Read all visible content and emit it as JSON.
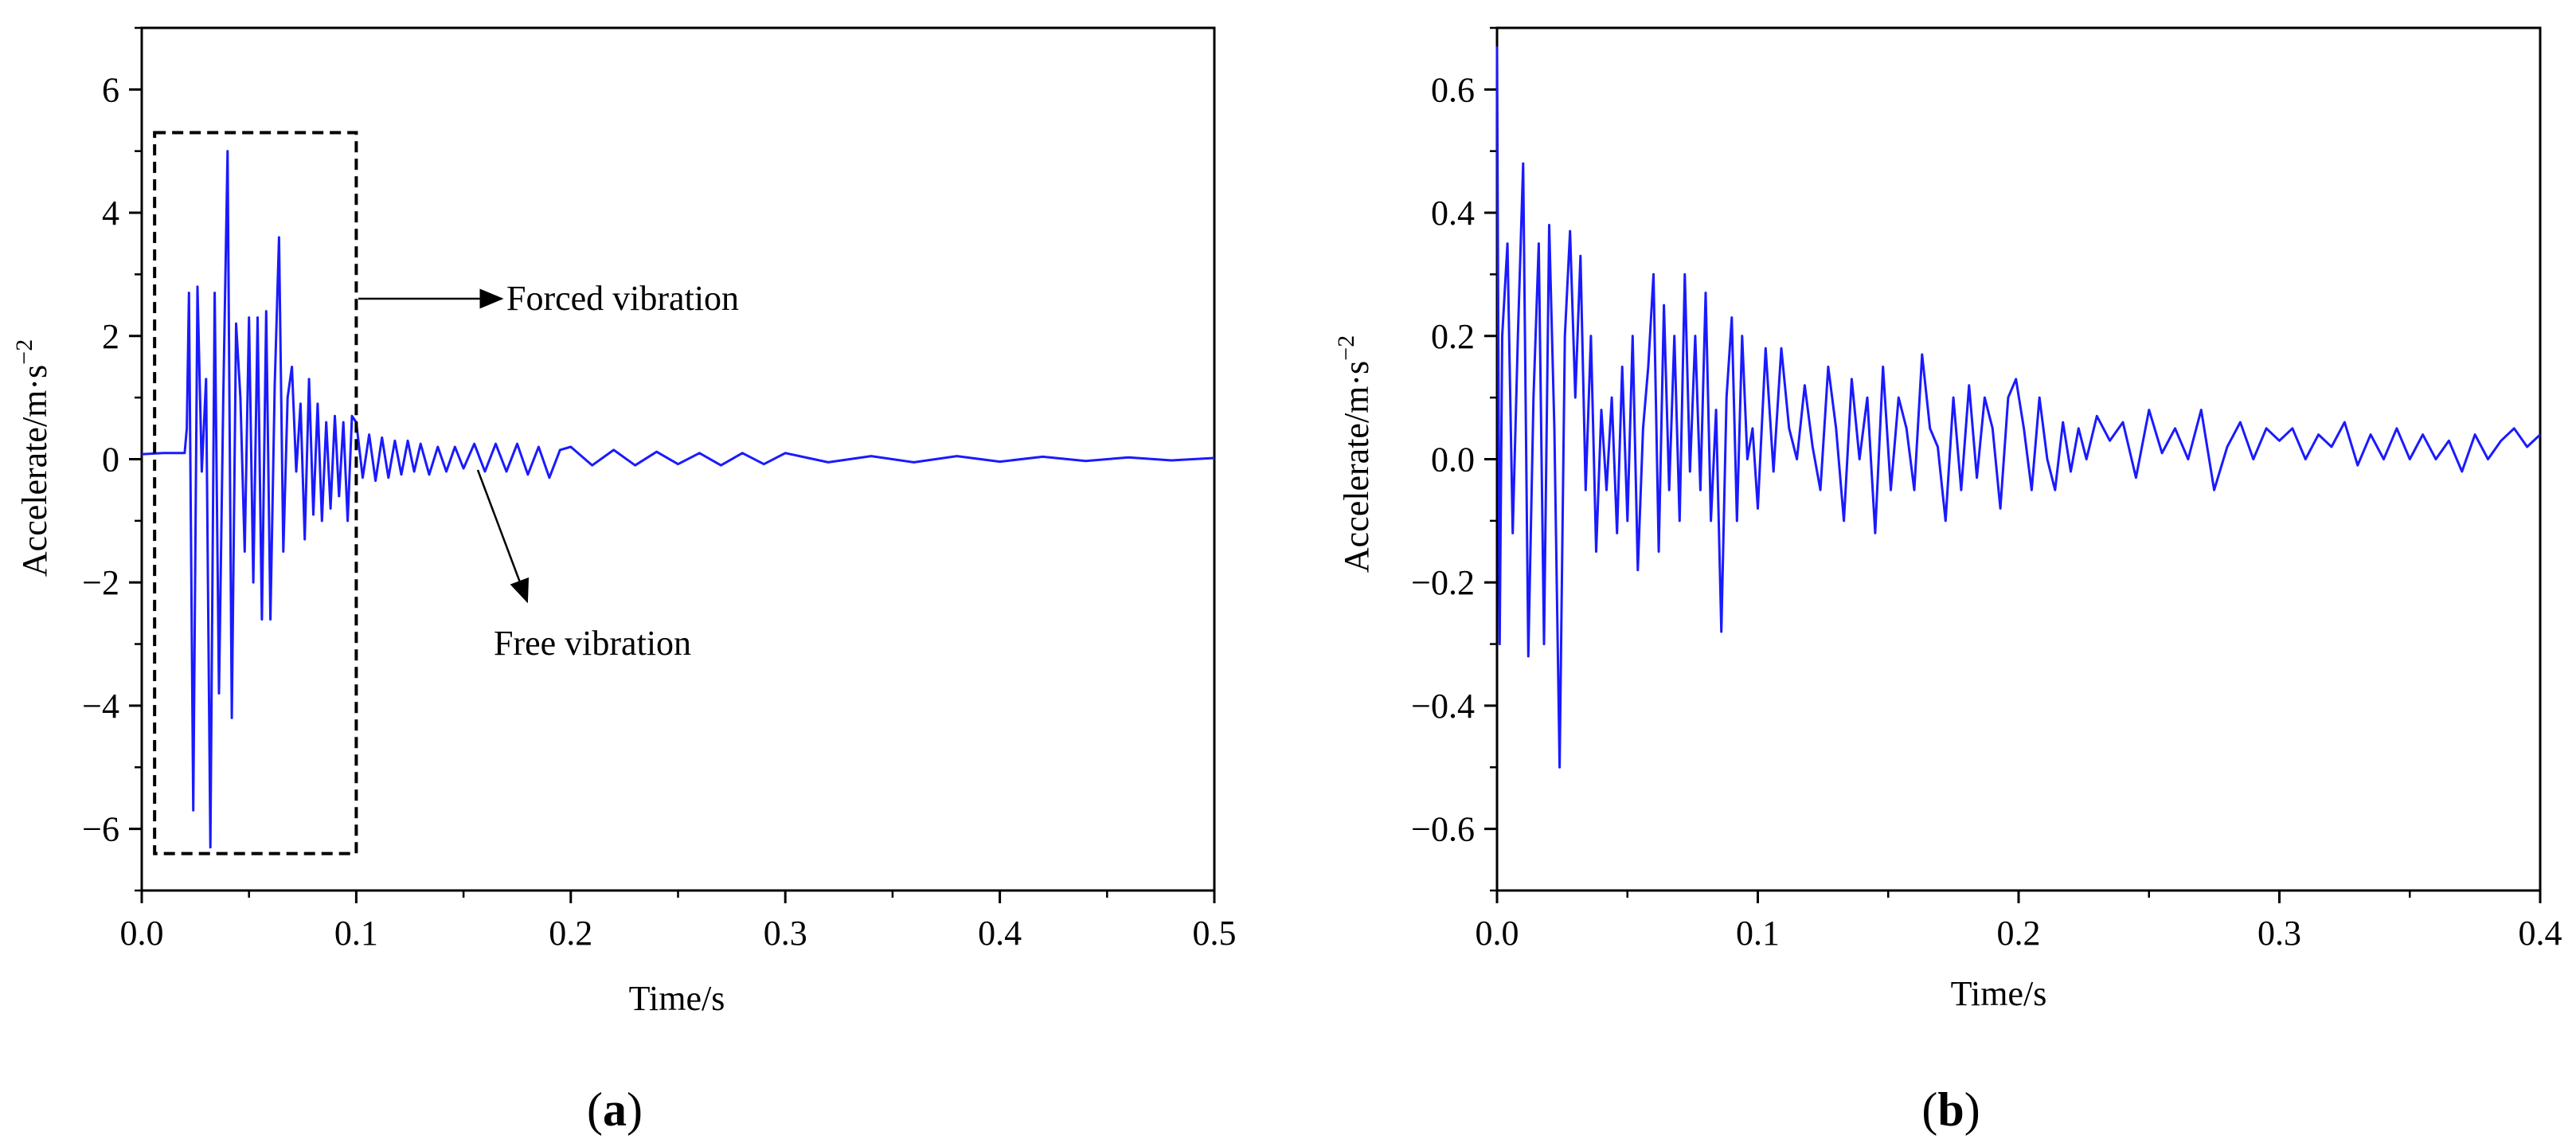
{
  "figure": {
    "panels": [
      {
        "open": "(",
        "letter": "a",
        "close": ")"
      },
      {
        "open": "(",
        "letter": "b",
        "close": ")"
      }
    ]
  },
  "chart_data": [
    {
      "type": "line",
      "panel": "a",
      "xlabel": "Time/s",
      "ylabel": "Accelerate/m·s",
      "ylabel_exponent": "−2",
      "xlim": [
        0,
        0.5
      ],
      "ylim": [
        -7,
        7
      ],
      "xticks": [
        "0.0",
        "0.1",
        "0.2",
        "0.3",
        "0.4",
        "0.5"
      ],
      "xtick_values": [
        0,
        0.1,
        0.2,
        0.3,
        0.4,
        0.5
      ],
      "yticks": [
        "−6",
        "−4",
        "−2",
        "0",
        "2",
        "4",
        "6"
      ],
      "ytick_values": [
        -6,
        -4,
        -2,
        0,
        2,
        4,
        6
      ],
      "grid": false,
      "series_color": "#1a1aff",
      "annotations": {
        "forced": "Forced vibration",
        "free": "Free vibration",
        "forced_box": {
          "x": [
            0.006,
            0.1
          ],
          "y": [
            -6.4,
            5.3
          ]
        }
      },
      "series": [
        {
          "x": [
            0,
            0.01,
            0.02,
            0.021,
            0.022,
            0.024,
            0.026,
            0.028,
            0.03,
            0.032,
            0.034,
            0.036,
            0.038,
            0.04,
            0.042,
            0.044,
            0.046,
            0.048,
            0.05,
            0.052,
            0.054,
            0.056,
            0.058,
            0.06,
            0.062,
            0.064,
            0.066,
            0.068,
            0.07,
            0.072,
            0.074,
            0.076,
            0.078,
            0.08,
            0.082,
            0.084,
            0.086,
            0.088,
            0.09,
            0.092,
            0.094,
            0.096,
            0.098,
            0.1,
            0.103,
            0.106,
            0.109,
            0.112,
            0.115,
            0.118,
            0.121,
            0.124,
            0.127,
            0.13,
            0.134,
            0.138,
            0.142,
            0.146,
            0.15,
            0.155,
            0.16,
            0.165,
            0.17,
            0.175,
            0.18,
            0.185,
            0.19,
            0.195,
            0.2,
            0.21,
            0.22,
            0.23,
            0.24,
            0.25,
            0.26,
            0.27,
            0.28,
            0.29,
            0.3,
            0.32,
            0.34,
            0.36,
            0.38,
            0.4,
            0.42,
            0.44,
            0.46,
            0.48,
            0.5
          ],
          "y": [
            0.08,
            0.1,
            0.1,
            0.5,
            2.7,
            -5.7,
            2.8,
            -0.2,
            1.3,
            -6.3,
            2.7,
            -3.8,
            1.0,
            5.0,
            -4.2,
            2.2,
            1.0,
            -1.5,
            2.3,
            -2.0,
            2.3,
            -2.6,
            2.4,
            -2.6,
            1.2,
            3.6,
            -1.5,
            1.0,
            1.5,
            -0.2,
            0.9,
            -1.3,
            1.3,
            -0.9,
            0.9,
            -1.0,
            0.6,
            -0.8,
            0.7,
            -0.6,
            0.6,
            -1.0,
            0.7,
            0.6,
            -0.3,
            0.4,
            -0.35,
            0.35,
            -0.3,
            0.3,
            -0.25,
            0.3,
            -0.2,
            0.25,
            -0.25,
            0.2,
            -0.2,
            0.2,
            -0.15,
            0.25,
            -0.2,
            0.25,
            -0.2,
            0.25,
            -0.25,
            0.2,
            -0.3,
            0.15,
            0.2,
            -0.1,
            0.15,
            -0.1,
            0.12,
            -0.08,
            0.1,
            -0.1,
            0.1,
            -0.08,
            0.1,
            -0.05,
            0.05,
            -0.05,
            0.05,
            -0.04,
            0.04,
            -0.03,
            0.03,
            -0.02,
            0.02
          ]
        }
      ]
    },
    {
      "type": "line",
      "panel": "b",
      "xlabel": "Time/s",
      "ylabel": "Accelerate/m·s",
      "ylabel_exponent": "−2",
      "xlim": [
        0,
        0.4
      ],
      "ylim": [
        -0.7,
        0.7
      ],
      "xticks": [
        "0.0",
        "0.1",
        "0.2",
        "0.3",
        "0.4"
      ],
      "xtick_values": [
        0,
        0.1,
        0.2,
        0.3,
        0.4
      ],
      "yticks": [
        "−0.6",
        "−0.4",
        "−0.2",
        "0.0",
        "0.2",
        "0.4",
        "0.6"
      ],
      "ytick_values": [
        -0.6,
        -0.4,
        -0.2,
        0,
        0.2,
        0.4,
        0.6
      ],
      "grid": false,
      "series_color": "#1a1aff",
      "series": [
        {
          "x": [
            0,
            0.001,
            0.002,
            0.004,
            0.006,
            0.008,
            0.01,
            0.012,
            0.014,
            0.016,
            0.018,
            0.02,
            0.022,
            0.024,
            0.026,
            0.028,
            0.03,
            0.032,
            0.034,
            0.036,
            0.038,
            0.04,
            0.042,
            0.044,
            0.046,
            0.048,
            0.05,
            0.052,
            0.054,
            0.056,
            0.058,
            0.06,
            0.062,
            0.064,
            0.066,
            0.068,
            0.07,
            0.072,
            0.074,
            0.076,
            0.078,
            0.08,
            0.082,
            0.084,
            0.086,
            0.088,
            0.09,
            0.092,
            0.094,
            0.096,
            0.098,
            0.1,
            0.103,
            0.106,
            0.109,
            0.112,
            0.115,
            0.118,
            0.121,
            0.124,
            0.127,
            0.13,
            0.133,
            0.136,
            0.139,
            0.142,
            0.145,
            0.148,
            0.151,
            0.154,
            0.157,
            0.16,
            0.163,
            0.166,
            0.169,
            0.172,
            0.175,
            0.178,
            0.181,
            0.184,
            0.187,
            0.19,
            0.193,
            0.196,
            0.199,
            0.202,
            0.205,
            0.208,
            0.211,
            0.214,
            0.217,
            0.22,
            0.223,
            0.226,
            0.23,
            0.235,
            0.24,
            0.245,
            0.25,
            0.255,
            0.26,
            0.265,
            0.27,
            0.275,
            0.28,
            0.285,
            0.29,
            0.295,
            0.3,
            0.305,
            0.31,
            0.315,
            0.32,
            0.325,
            0.33,
            0.335,
            0.34,
            0.345,
            0.35,
            0.355,
            0.36,
            0.365,
            0.37,
            0.375,
            0.38,
            0.385,
            0.39,
            0.395,
            0.4
          ],
          "y": [
            0.67,
            -0.3,
            0.2,
            0.35,
            -0.12,
            0.2,
            0.48,
            -0.32,
            0.1,
            0.35,
            -0.3,
            0.38,
            0.05,
            -0.5,
            0.2,
            0.37,
            0.1,
            0.33,
            -0.05,
            0.2,
            -0.15,
            0.08,
            -0.05,
            0.1,
            -0.12,
            0.15,
            -0.1,
            0.2,
            -0.18,
            0.05,
            0.15,
            0.3,
            -0.15,
            0.25,
            -0.05,
            0.2,
            -0.1,
            0.3,
            -0.02,
            0.2,
            -0.05,
            0.27,
            -0.1,
            0.08,
            -0.28,
            0.1,
            0.23,
            -0.1,
            0.2,
            0.0,
            0.05,
            -0.08,
            0.18,
            -0.02,
            0.18,
            0.05,
            0.0,
            0.12,
            0.02,
            -0.05,
            0.15,
            0.05,
            -0.1,
            0.13,
            0.0,
            0.1,
            -0.12,
            0.15,
            -0.05,
            0.1,
            0.05,
            -0.05,
            0.17,
            0.05,
            0.02,
            -0.1,
            0.1,
            -0.05,
            0.12,
            -0.03,
            0.1,
            0.05,
            -0.08,
            0.1,
            0.13,
            0.05,
            -0.05,
            0.1,
            0.0,
            -0.05,
            0.06,
            -0.02,
            0.05,
            0.0,
            0.07,
            0.03,
            0.06,
            -0.03,
            0.08,
            0.01,
            0.05,
            0.0,
            0.08,
            -0.05,
            0.02,
            0.06,
            0.0,
            0.05,
            0.03,
            0.05,
            0.0,
            0.04,
            0.02,
            0.06,
            -0.01,
            0.04,
            0.0,
            0.05,
            0.0,
            0.04,
            0.0,
            0.03,
            -0.02,
            0.04,
            0.0,
            0.03,
            0.05,
            0.02,
            0.04
          ]
        }
      ]
    }
  ]
}
